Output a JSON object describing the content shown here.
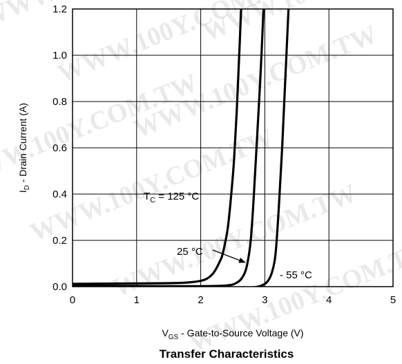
{
  "chart_data": {
    "type": "line",
    "title": "Transfer Characteristics",
    "xlabel": {
      "main": "V",
      "sub": "GS",
      "rest": " - Gate-to-Source Voltage (V)"
    },
    "ylabel": {
      "main": "I",
      "sub": "D",
      "rest": " - Drain Current (A)"
    },
    "xlim": [
      0,
      5
    ],
    "ylim": [
      0,
      1.2
    ],
    "x_ticks": [
      {
        "value": 0,
        "label": "0"
      },
      {
        "value": 1,
        "label": "1"
      },
      {
        "value": 2,
        "label": "2"
      },
      {
        "value": 3,
        "label": "3"
      },
      {
        "value": 4,
        "label": "4"
      },
      {
        "value": 5,
        "label": "5"
      }
    ],
    "y_ticks": [
      {
        "value": 0,
        "label": "0.0"
      },
      {
        "value": 0.2,
        "label": "0.2"
      },
      {
        "value": 0.4,
        "label": "0.4"
      },
      {
        "value": 0.6,
        "label": "0.6"
      },
      {
        "value": 0.8,
        "label": "0.8"
      },
      {
        "value": 1.0,
        "label": "1.0"
      },
      {
        "value": 1.2,
        "label": "1.2"
      }
    ],
    "grid": true,
    "series": [
      {
        "name": "TC = 125 °C",
        "points": [
          [
            0,
            0.012
          ],
          [
            0.5,
            0.013
          ],
          [
            1.0,
            0.014
          ],
          [
            1.5,
            0.015
          ],
          [
            1.8,
            0.018
          ],
          [
            2.0,
            0.025
          ],
          [
            2.1,
            0.035
          ],
          [
            2.2,
            0.06
          ],
          [
            2.3,
            0.11
          ],
          [
            2.35,
            0.15
          ],
          [
            2.42,
            0.25
          ],
          [
            2.47,
            0.38
          ],
          [
            2.52,
            0.55
          ],
          [
            2.56,
            0.75
          ],
          [
            2.6,
            1.0
          ],
          [
            2.63,
            1.2
          ]
        ]
      },
      {
        "name": "25 °C",
        "points": [
          [
            0,
            0.005
          ],
          [
            0.5,
            0.004
          ],
          [
            1.0,
            0.003
          ],
          [
            1.5,
            0.002
          ],
          [
            2.0,
            0.002
          ],
          [
            2.4,
            0.005
          ],
          [
            2.55,
            0.015
          ],
          [
            2.65,
            0.04
          ],
          [
            2.72,
            0.09
          ],
          [
            2.78,
            0.2
          ],
          [
            2.83,
            0.4
          ],
          [
            2.88,
            0.65
          ],
          [
            2.93,
            0.9
          ],
          [
            2.98,
            1.2
          ]
        ]
      },
      {
        "name": "- 55 °C",
        "points": [
          [
            0,
            -0.002
          ],
          [
            1.0,
            -0.004
          ],
          [
            2.0,
            -0.008
          ],
          [
            2.5,
            -0.008
          ],
          [
            2.8,
            -0.004
          ],
          [
            2.95,
            0.005
          ],
          [
            3.05,
            0.025
          ],
          [
            3.12,
            0.07
          ],
          [
            3.17,
            0.15
          ],
          [
            3.22,
            0.35
          ],
          [
            3.27,
            0.6
          ],
          [
            3.32,
            0.9
          ],
          [
            3.37,
            1.2
          ]
        ]
      }
    ],
    "annotations": [
      {
        "text_main": "T",
        "text_sub": "C",
        "text_rest": " = 125 °C",
        "series": "TC = 125 °C"
      },
      {
        "text": "25 °C",
        "arrow": true
      },
      {
        "text": "- 55 °C",
        "boxed": true
      }
    ],
    "watermark": "WWW.100Y.COM.TW"
  }
}
